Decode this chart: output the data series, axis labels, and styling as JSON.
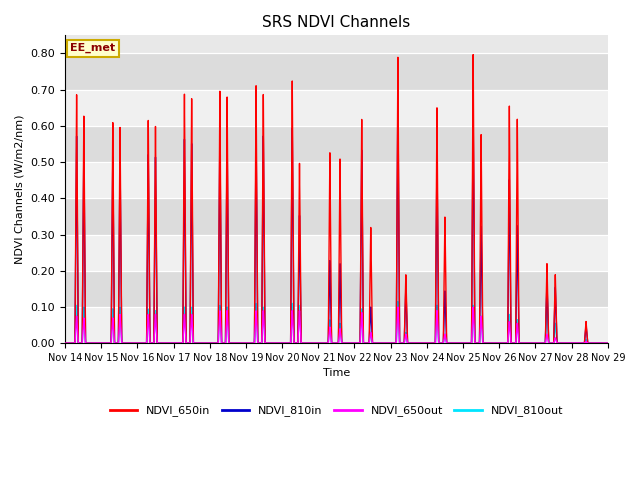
{
  "title": "SRS NDVI Channels",
  "ylabel": "NDVI Channels (W/m2/nm)",
  "xlabel": "Time",
  "xlim_days": [
    14,
    29
  ],
  "ylim": [
    0.0,
    0.85
  ],
  "yticks": [
    0.0,
    0.1,
    0.2,
    0.3,
    0.4,
    0.5,
    0.6,
    0.7,
    0.8
  ],
  "xtick_labels": [
    "Nov 14",
    "Nov 15",
    "Nov 16",
    "Nov 17",
    "Nov 18",
    "Nov 19",
    "Nov 20",
    "Nov 21",
    "Nov 22",
    "Nov 23",
    "Nov 24",
    "Nov 25",
    "Nov 26",
    "Nov 27",
    "Nov 28",
    "Nov 29"
  ],
  "fig_bg_color": "#ffffff",
  "plot_bg_color": "#e8e8e8",
  "annotation_text": "EE_met",
  "annotation_color": "#8B0000",
  "annotation_bg": "#ffffcc",
  "annotation_border": "#ccaa00",
  "colors": {
    "NDVI_650in": "#ff0000",
    "NDVI_810in": "#0000cc",
    "NDVI_650out": "#ff00ff",
    "NDVI_810out": "#00e5ff"
  },
  "spikes": [
    {
      "day": 14.32,
      "peak_650in": 0.69,
      "peak_810in": 0.575,
      "peak_650out": 0.075,
      "peak_810out": 0.105
    },
    {
      "day": 14.52,
      "peak_650in": 0.63,
      "peak_810in": 0.535,
      "peak_650out": 0.07,
      "peak_810out": 0.1
    },
    {
      "day": 15.32,
      "peak_650in": 0.61,
      "peak_810in": 0.515,
      "peak_650out": 0.07,
      "peak_810out": 0.095
    },
    {
      "day": 15.52,
      "peak_650in": 0.6,
      "peak_810in": 0.515,
      "peak_650out": 0.08,
      "peak_810out": 0.1
    },
    {
      "day": 16.3,
      "peak_650in": 0.62,
      "peak_810in": 0.525,
      "peak_650out": 0.08,
      "peak_810out": 0.095
    },
    {
      "day": 16.5,
      "peak_650in": 0.6,
      "peak_810in": 0.515,
      "peak_650out": 0.08,
      "peak_810out": 0.09
    },
    {
      "day": 17.3,
      "peak_650in": 0.69,
      "peak_810in": 0.565,
      "peak_650out": 0.08,
      "peak_810out": 0.1
    },
    {
      "day": 17.5,
      "peak_650in": 0.68,
      "peak_810in": 0.555,
      "peak_650out": 0.08,
      "peak_810out": 0.1
    },
    {
      "day": 18.28,
      "peak_650in": 0.7,
      "peak_810in": 0.585,
      "peak_650out": 0.09,
      "peak_810out": 0.105
    },
    {
      "day": 18.48,
      "peak_650in": 0.68,
      "peak_810in": 0.575,
      "peak_650out": 0.09,
      "peak_810out": 0.1
    },
    {
      "day": 19.28,
      "peak_650in": 0.715,
      "peak_810in": 0.585,
      "peak_650out": 0.09,
      "peak_810out": 0.11
    },
    {
      "day": 19.48,
      "peak_650in": 0.69,
      "peak_810in": 0.575,
      "peak_650out": 0.09,
      "peak_810out": 0.1
    },
    {
      "day": 20.28,
      "peak_650in": 0.725,
      "peak_810in": 0.595,
      "peak_650out": 0.09,
      "peak_810out": 0.11
    },
    {
      "day": 20.48,
      "peak_650in": 0.5,
      "peak_810in": 0.355,
      "peak_650out": 0.09,
      "peak_810out": 0.105
    },
    {
      "day": 21.32,
      "peak_650in": 0.53,
      "peak_810in": 0.23,
      "peak_650out": 0.045,
      "peak_810out": 0.065
    },
    {
      "day": 21.6,
      "peak_650in": 0.51,
      "peak_810in": 0.22,
      "peak_650out": 0.04,
      "peak_810out": 0.055
    },
    {
      "day": 22.2,
      "peak_650in": 0.62,
      "peak_810in": 0.535,
      "peak_650out": 0.085,
      "peak_810out": 0.095
    },
    {
      "day": 22.45,
      "peak_650in": 0.32,
      "peak_810in": 0.1,
      "peak_650out": 0.03,
      "peak_810out": 0.03
    },
    {
      "day": 23.2,
      "peak_650in": 0.79,
      "peak_810in": 0.69,
      "peak_650out": 0.1,
      "peak_810out": 0.115
    },
    {
      "day": 23.42,
      "peak_650in": 0.19,
      "peak_810in": 0.155,
      "peak_650out": 0.025,
      "peak_810out": 0.03
    },
    {
      "day": 24.28,
      "peak_650in": 0.65,
      "peak_810in": 0.515,
      "peak_650out": 0.09,
      "peak_810out": 0.105
    },
    {
      "day": 24.5,
      "peak_650in": 0.35,
      "peak_810in": 0.145,
      "peak_650out": 0.025,
      "peak_810out": 0.025
    },
    {
      "day": 25.28,
      "peak_650in": 0.8,
      "peak_810in": 0.635,
      "peak_650out": 0.1,
      "peak_810out": 0.105
    },
    {
      "day": 25.5,
      "peak_650in": 0.58,
      "peak_810in": 0.325,
      "peak_650out": 0.075,
      "peak_810out": 0.075
    },
    {
      "day": 26.28,
      "peak_650in": 0.66,
      "peak_810in": 0.455,
      "peak_650out": 0.06,
      "peak_810out": 0.08
    },
    {
      "day": 26.5,
      "peak_650in": 0.62,
      "peak_810in": 0.325,
      "peak_650out": 0.055,
      "peak_810out": 0.065
    },
    {
      "day": 27.32,
      "peak_650in": 0.22,
      "peak_810in": 0.17,
      "peak_650out": 0.025,
      "peak_810out": 0.155
    },
    {
      "day": 27.55,
      "peak_650in": 0.19,
      "peak_810in": 0.155,
      "peak_650out": 0.015,
      "peak_810out": 0.055
    },
    {
      "day": 28.4,
      "peak_650in": 0.06,
      "peak_810in": 0.05,
      "peak_650out": 0.005,
      "peak_810out": 0.01
    }
  ]
}
